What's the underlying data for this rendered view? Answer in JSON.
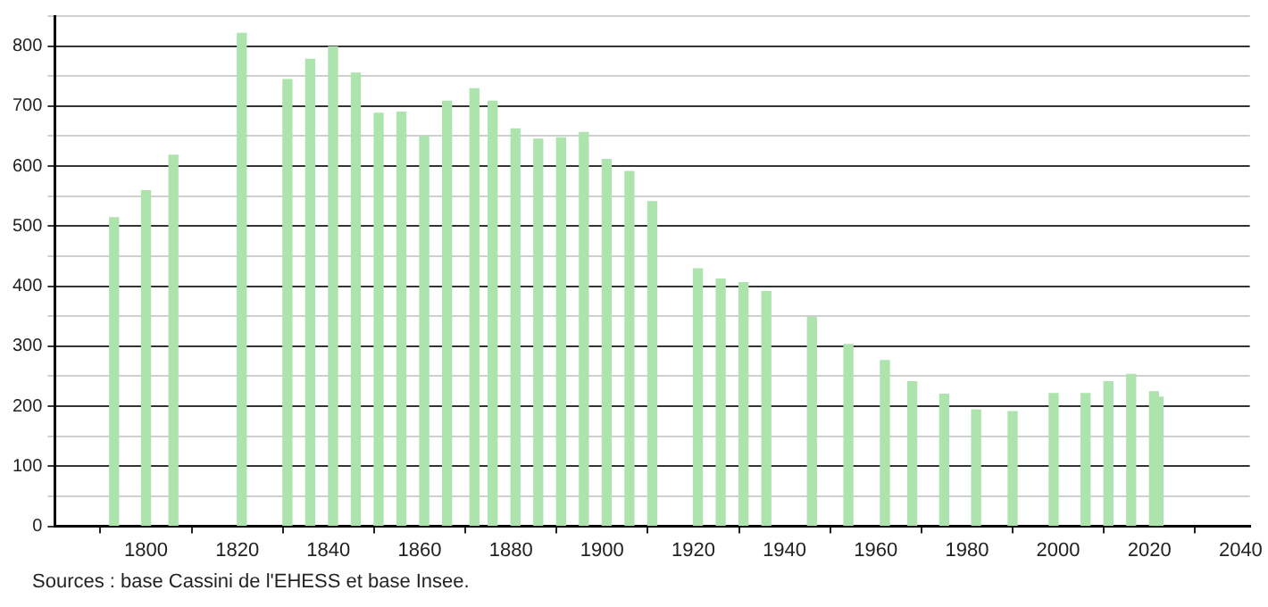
{
  "chart_data": {
    "type": "bar",
    "x": [
      1793,
      1800,
      1806,
      1821,
      1831,
      1836,
      1841,
      1846,
      1851,
      1856,
      1861,
      1866,
      1872,
      1876,
      1881,
      1886,
      1891,
      1896,
      1901,
      1906,
      1911,
      1921,
      1926,
      1931,
      1936,
      1946,
      1954,
      1962,
      1968,
      1975,
      1982,
      1990,
      1999,
      2006,
      2011,
      2016,
      2021,
      2022
    ],
    "values": [
      514,
      559,
      618,
      821,
      744,
      778,
      799,
      755,
      688,
      690,
      649,
      708,
      729,
      708,
      662,
      645,
      647,
      656,
      611,
      591,
      541,
      429,
      412,
      406,
      391,
      348,
      303,
      276,
      241,
      220,
      194,
      191,
      221,
      221,
      241,
      253,
      224,
      215
    ],
    "color": "#ade3ad",
    "xlim": [
      1780,
      2042
    ],
    "xticks": [
      1800,
      1820,
      1840,
      1860,
      1880,
      1900,
      1920,
      1940,
      1960,
      1980,
      2000,
      2020,
      2040
    ],
    "ylim": [
      0,
      850
    ],
    "yticks": [
      0,
      {
        "value": 50,
        "label": null
      },
      100,
      {
        "value": 150,
        "label": null
      },
      200,
      {
        "value": 250,
        "label": null
      },
      300,
      {
        "value": 350,
        "label": null
      },
      400,
      {
        "value": 450,
        "label": null
      },
      500,
      {
        "value": 550,
        "label": null
      },
      600,
      {
        "value": 650,
        "label": null
      },
      700,
      {
        "value": 750,
        "label": null
      },
      800,
      {
        "value": 850,
        "label": null
      }
    ],
    "grid": "y",
    "legend": false,
    "annotations": [
      "Sources : base Cassini de l'EHESS et base Insee."
    ]
  }
}
